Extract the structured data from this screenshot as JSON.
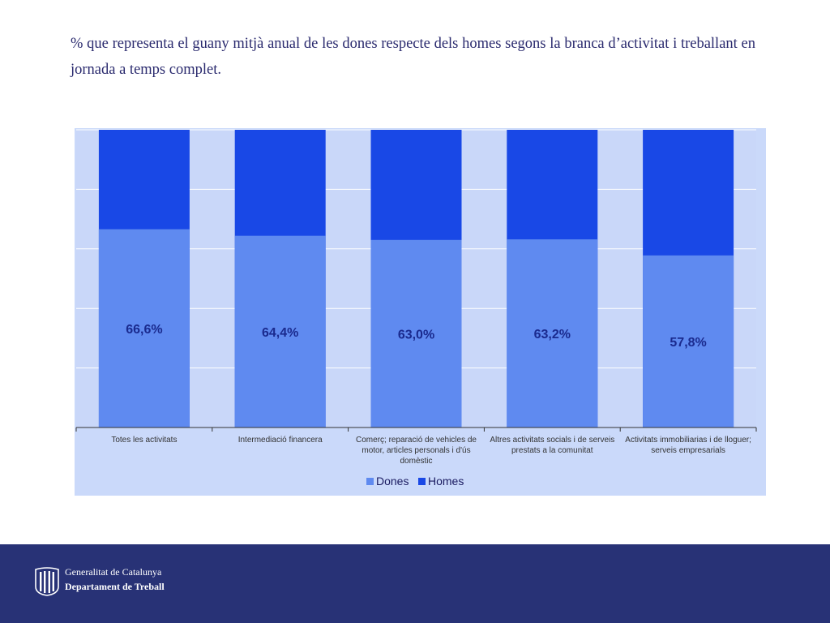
{
  "title": "% que representa el guany mitjà anual de les dones respecte dels homes segons la branca d’activitat i treballant en jornada a temps complet.",
  "chart_data": {
    "type": "bar",
    "stacked": true,
    "percent_stacked": true,
    "categories": [
      "Totes les activitats",
      "Intermediació financera",
      "Comerç; reparació de vehicles de motor, articles personals i d'ús domèstic",
      "Altres activitats socials i de serveis prestats a la comunitat",
      "Activitats immobiliarias i de lloguer; serveis empresarials"
    ],
    "series": [
      {
        "name": "Dones",
        "values": [
          66.6,
          64.4,
          63.0,
          63.2,
          57.8
        ],
        "color": "#5f8af0"
      },
      {
        "name": "Homes",
        "values": [
          100,
          100,
          100,
          100,
          100
        ],
        "color": "#1948e6"
      }
    ],
    "data_labels": [
      "66,6%",
      "64,4%",
      "63,0%",
      "63,2%",
      "57,8%"
    ],
    "grid": true,
    "legend": "bottom"
  },
  "footer": {
    "org_line1": "Generalitat de Catalunya",
    "org_line2": "Departament de Treball",
    "logo_icon": "generalitat-logo-icon"
  }
}
